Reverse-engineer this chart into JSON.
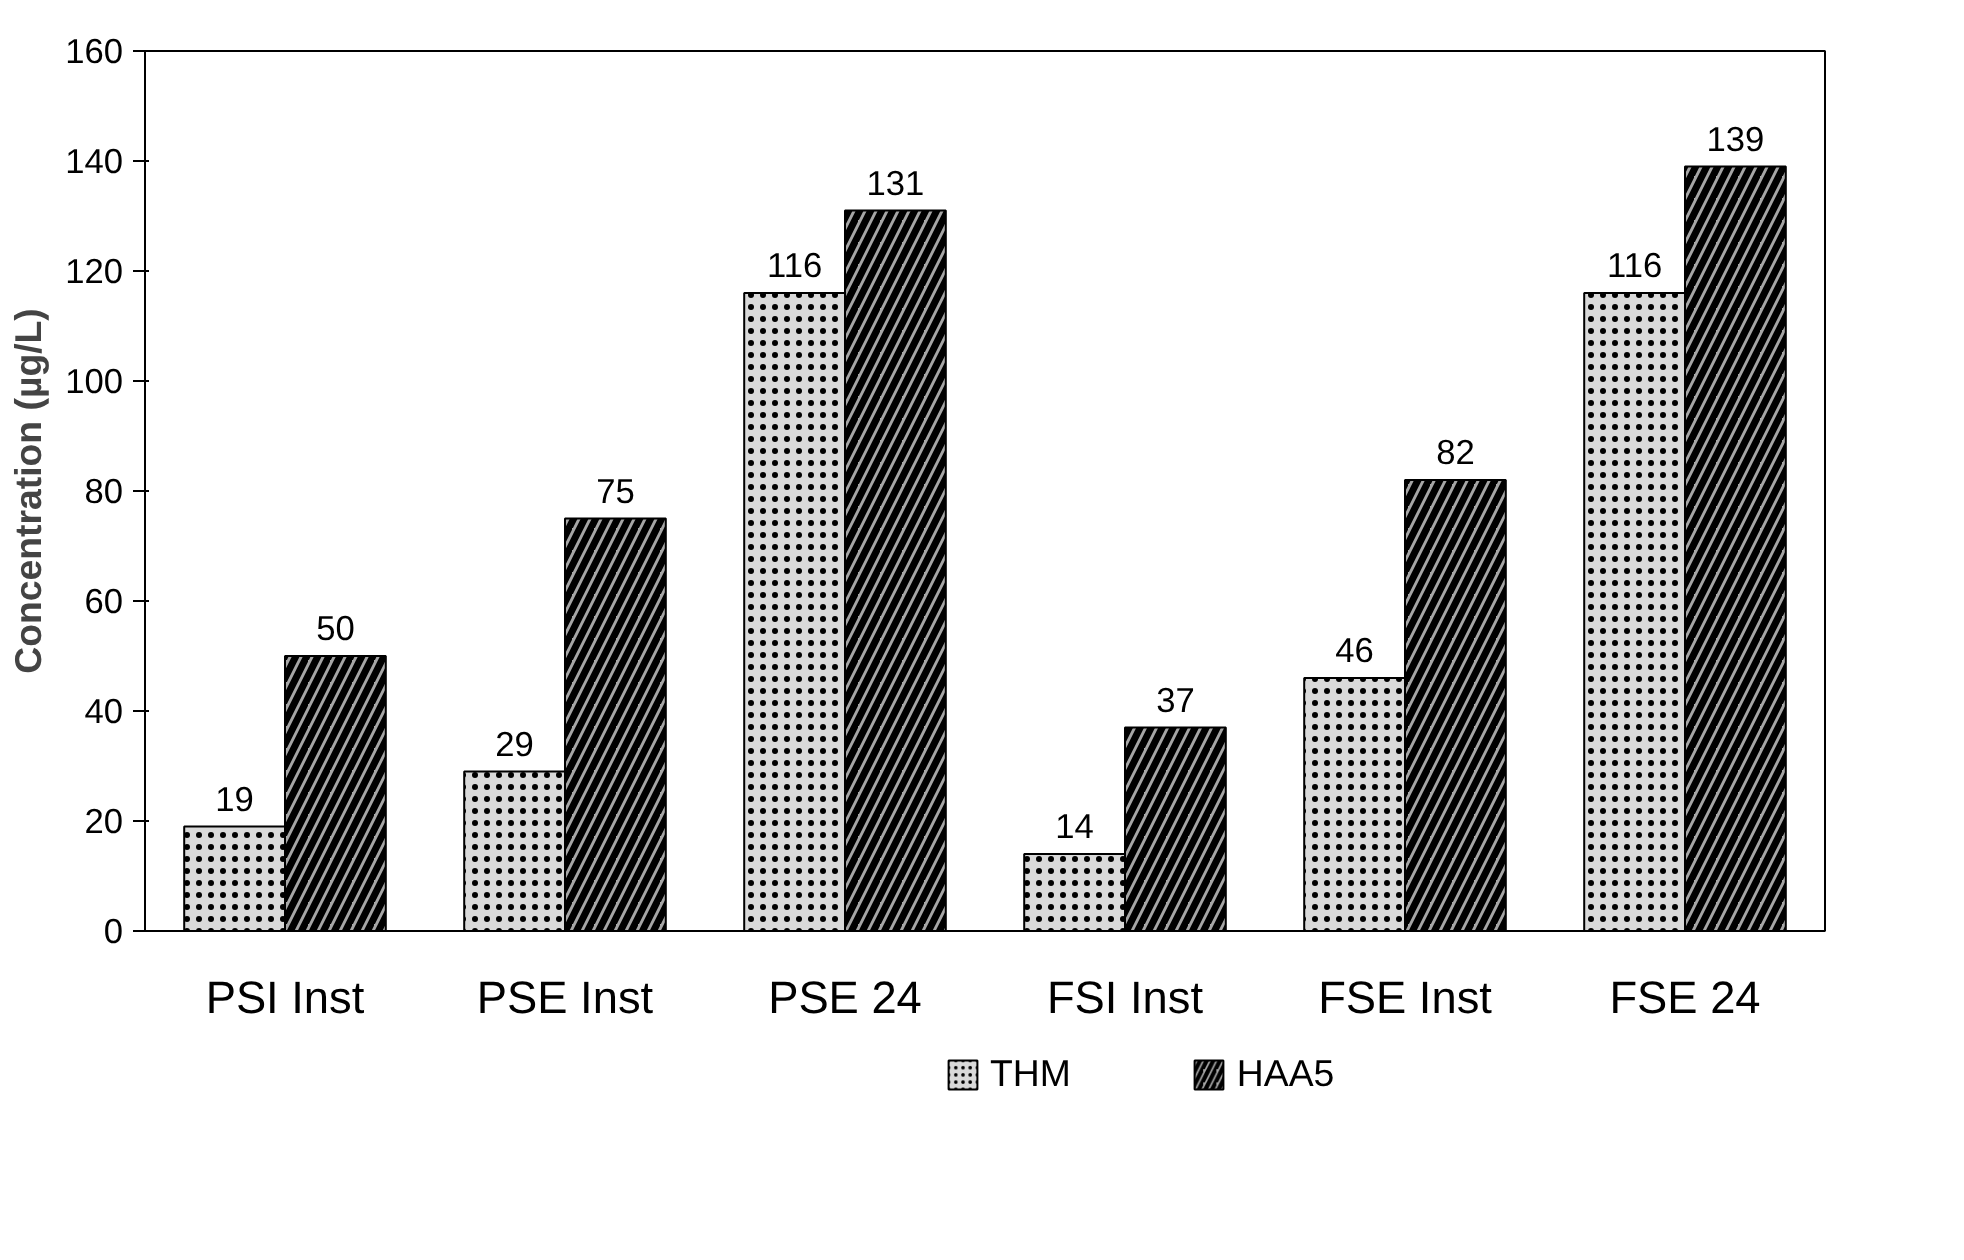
{
  "chart_data": {
    "type": "bar",
    "ylabel": "Concentration (µg/L)",
    "categories": [
      "PSI Inst",
      "PSE Inst",
      "PSE 24",
      "FSI Inst",
      "FSE Inst",
      "FSE 24"
    ],
    "series": [
      {
        "name": "THM",
        "color": "#d9d9d9",
        "values": [
          19,
          29,
          116,
          14,
          46,
          116
        ]
      },
      {
        "name": "HAA5",
        "color": "#a6a6a6",
        "values": [
          50,
          75,
          131,
          37,
          82,
          139
        ]
      }
    ],
    "ylim": [
      0,
      160
    ],
    "yticks": [
      0,
      20,
      40,
      60,
      80,
      100,
      120,
      140,
      160
    ],
    "grid": false,
    "legend": "bottom",
    "data_labels": true
  }
}
